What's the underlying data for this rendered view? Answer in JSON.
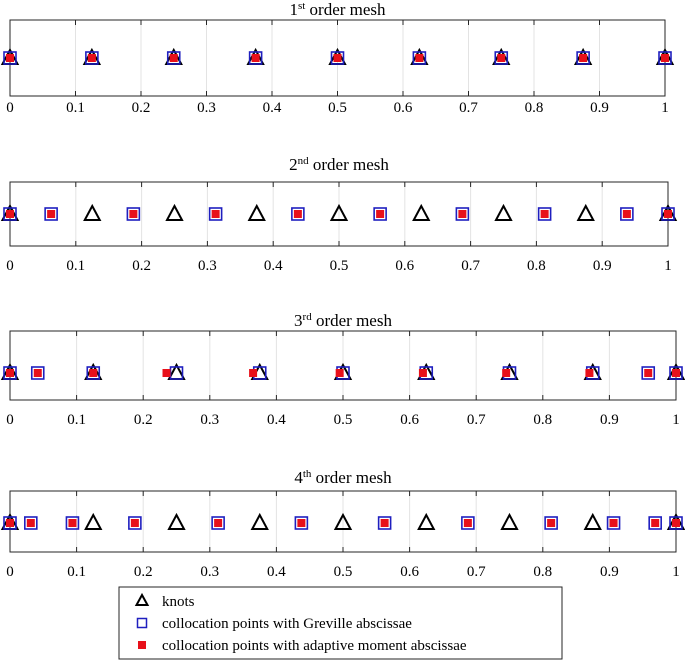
{
  "chart_data": [
    {
      "type": "scatter",
      "title": "1st order mesh",
      "title_base": "1",
      "title_sup": "st",
      "title_rest": " order mesh",
      "xlim": [
        0,
        1
      ],
      "xticks": [
        0,
        0.1,
        0.2,
        0.3,
        0.4,
        0.5,
        0.6,
        0.7,
        0.8,
        0.9,
        1
      ],
      "xtick_labels": [
        "0",
        "0.1",
        "0.2",
        "0.3",
        "0.4",
        "0.5",
        "0.6",
        "0.7",
        "0.8",
        "0.9",
        "1"
      ],
      "grid": true,
      "series": [
        {
          "key": "knots",
          "x": [
            0,
            0.125,
            0.25,
            0.375,
            0.5,
            0.625,
            0.75,
            0.875,
            1
          ]
        },
        {
          "key": "greville",
          "x": [
            0,
            0.125,
            0.25,
            0.375,
            0.5,
            0.625,
            0.75,
            0.875,
            1
          ]
        },
        {
          "key": "adaptive",
          "x": [
            0,
            0.125,
            0.25,
            0.375,
            0.5,
            0.625,
            0.75,
            0.875,
            1
          ]
        }
      ]
    },
    {
      "type": "scatter",
      "title": "2nd order mesh",
      "title_base": "2",
      "title_sup": "nd",
      "title_rest": " order mesh",
      "xlim": [
        0,
        1
      ],
      "xticks": [
        0,
        0.1,
        0.2,
        0.3,
        0.4,
        0.5,
        0.6,
        0.7,
        0.8,
        0.9,
        1
      ],
      "xtick_labels": [
        "0",
        "0.1",
        "0.2",
        "0.3",
        "0.4",
        "0.5",
        "0.6",
        "0.7",
        "0.8",
        "0.9",
        "1"
      ],
      "grid": true,
      "series": [
        {
          "key": "knots",
          "x": [
            0,
            0.125,
            0.25,
            0.375,
            0.5,
            0.625,
            0.75,
            0.875,
            1
          ]
        },
        {
          "key": "greville",
          "x": [
            0,
            0.0625,
            0.1875,
            0.3125,
            0.4375,
            0.5625,
            0.6875,
            0.8125,
            0.9375,
            1
          ]
        },
        {
          "key": "adaptive",
          "x": [
            0,
            0.0625,
            0.1875,
            0.3125,
            0.4375,
            0.5625,
            0.6875,
            0.8125,
            0.9375,
            1
          ]
        }
      ]
    },
    {
      "type": "scatter",
      "title": "3rd order mesh",
      "title_base": "3",
      "title_sup": "rd",
      "title_rest": " order mesh",
      "xlim": [
        0,
        1
      ],
      "xticks": [
        0,
        0.1,
        0.2,
        0.3,
        0.4,
        0.5,
        0.6,
        0.7,
        0.8,
        0.9,
        1
      ],
      "xtick_labels": [
        "0",
        "0.1",
        "0.2",
        "0.3",
        "0.4",
        "0.5",
        "0.6",
        "0.7",
        "0.8",
        "0.9",
        "1"
      ],
      "grid": true,
      "series": [
        {
          "key": "knots",
          "x": [
            0,
            0.125,
            0.25,
            0.375,
            0.5,
            0.625,
            0.75,
            0.875,
            1
          ]
        },
        {
          "key": "greville",
          "x": [
            0,
            0.0417,
            0.125,
            0.25,
            0.375,
            0.5,
            0.625,
            0.75,
            0.875,
            0.9583,
            1
          ]
        },
        {
          "key": "adaptive",
          "x": [
            0,
            0.0417,
            0.125,
            0.235,
            0.365,
            0.495,
            0.62,
            0.745,
            0.87,
            0.9583,
            1
          ]
        }
      ]
    },
    {
      "type": "scatter",
      "title": "4th order mesh",
      "title_base": "4",
      "title_sup": "th",
      "title_rest": " order mesh",
      "xlim": [
        0,
        1
      ],
      "xticks": [
        0,
        0.1,
        0.2,
        0.3,
        0.4,
        0.5,
        0.6,
        0.7,
        0.8,
        0.9,
        1
      ],
      "xtick_labels": [
        "0",
        "0.1",
        "0.2",
        "0.3",
        "0.4",
        "0.5",
        "0.6",
        "0.7",
        "0.8",
        "0.9",
        "1"
      ],
      "grid": true,
      "series": [
        {
          "key": "knots",
          "x": [
            0,
            0.125,
            0.25,
            0.375,
            0.5,
            0.625,
            0.75,
            0.875,
            1
          ]
        },
        {
          "key": "greville",
          "x": [
            0,
            0.03125,
            0.09375,
            0.1875,
            0.3125,
            0.4375,
            0.5625,
            0.6875,
            0.8125,
            0.90625,
            0.96875,
            1
          ]
        },
        {
          "key": "adaptive",
          "x": [
            0,
            0.03125,
            0.09375,
            0.1875,
            0.3125,
            0.4375,
            0.5625,
            0.6875,
            0.8125,
            0.90625,
            0.96875,
            1
          ]
        }
      ]
    }
  ],
  "legend": {
    "placement": "bottom-center",
    "items": [
      {
        "key": "knots",
        "label": "knots",
        "marker": "triangle",
        "color": "#000000"
      },
      {
        "key": "greville",
        "label": "collocation points with Greville abscissae",
        "marker": "square-open",
        "color": "#1f1fbf"
      },
      {
        "key": "adaptive",
        "label": "collocation points with adaptive moment abscissae",
        "marker": "square-filled",
        "color": "#e8101a"
      }
    ]
  }
}
